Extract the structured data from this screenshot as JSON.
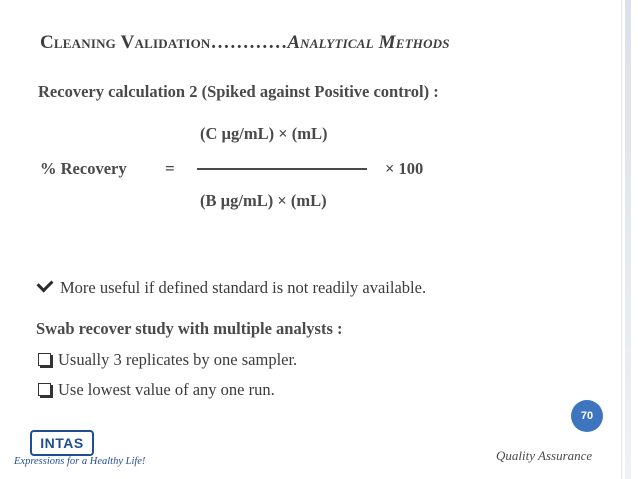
{
  "slide": {
    "title": {
      "part1": "Cleaning Validation",
      "dots": "…………",
      "part2": "Analytical Methods"
    },
    "subtitle": "Recovery calculation 2 (Spiked against Positive control) :",
    "formula": {
      "label": "% Recovery",
      "equals": "=",
      "numerator": "(C µg/mL) × (mL)",
      "denominator": "(B µg/mL) × (mL)",
      "multiplier": "× 100"
    },
    "check_point": "More useful if defined standard is not readily available.",
    "swab_title": "Swab recover study with multiple analysts :",
    "bullets": [
      "Usually 3 replicates by one sampler.",
      "Use lowest value of any one run."
    ],
    "page_number": "70",
    "footer": "Quality Assurance",
    "logo": {
      "name": "INTAS",
      "tagline": "Expressions for a Healthy Life!"
    },
    "colors": {
      "badge": "#3d76bf",
      "logo": "#1f4e96"
    }
  }
}
